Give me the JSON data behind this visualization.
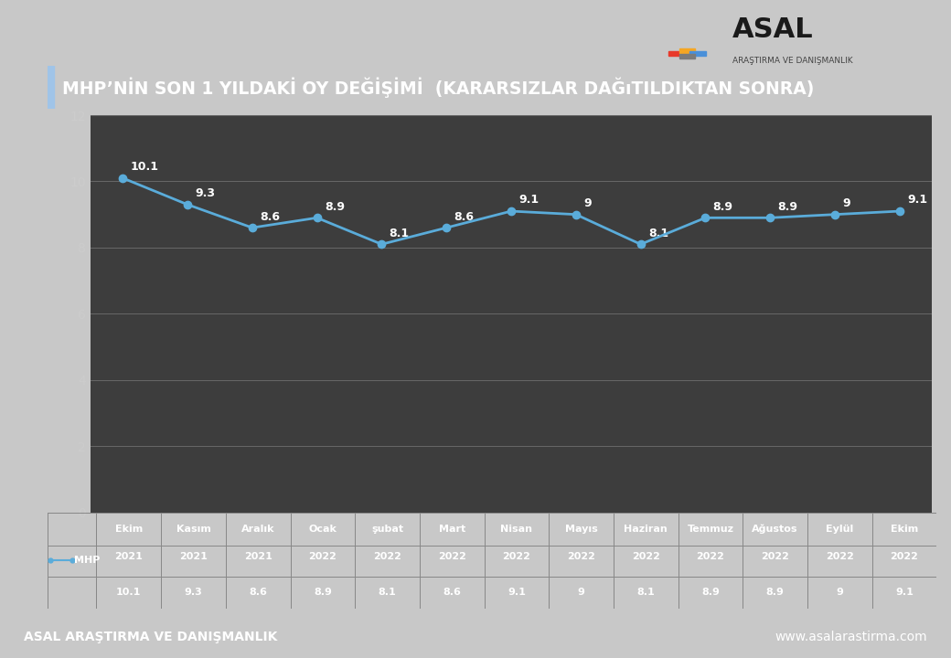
{
  "title": "MHP’NİN SON 1 YILDAKİ OY DEĞİŞİMİ  (KARARSIZLAR DAĞıTILDIKTAN SONRA)",
  "categories": [
    "Ekim\n2021",
    "Kasım\n2021",
    "Aralık\n2021",
    "Ocak\n2022",
    "şubat\n2022",
    "Mart\n2022",
    "Nisan\n2022",
    "Mayıs\n2022",
    "Haziran\n2022",
    "Temmuz\n2022",
    "Ağustos\n2022",
    "Eylül\n2022",
    "Ekim\n2022"
  ],
  "cat_row1": [
    "Ekim",
    "Kasım",
    "Aralık",
    "Ocak",
    "şubat",
    "Mart",
    "Nisan",
    "Mayıs",
    "Haziran",
    "Temmuz",
    "Ağustos",
    "Eylül",
    "Ekim"
  ],
  "cat_row2": [
    "2021",
    "2021",
    "2021",
    "2022",
    "2022",
    "2022",
    "2022",
    "2022",
    "2022",
    "2022",
    "2022",
    "2022",
    "2022"
  ],
  "values": [
    10.1,
    9.3,
    8.6,
    8.9,
    8.1,
    8.6,
    9.1,
    9.0,
    8.1,
    8.9,
    8.9,
    9.0,
    9.1
  ],
  "line_color": "#5aacda",
  "marker_color": "#5aacda",
  "chart_bg": "#3d3d3d",
  "outer_bg": "#c8c8c8",
  "title_bg": "#2b4d82",
  "title_color": "#ffffff",
  "footer_bg": "#2b4d82",
  "footer_left": "ASAL ARAŞTIRMA VE DANIŞMANLIK",
  "footer_right": "www.asalarastirma.com",
  "footer_color": "#ffffff",
  "legend_label": "MHP",
  "ylim": [
    0,
    12
  ],
  "yticks": [
    0,
    2,
    4,
    6,
    8,
    10,
    12
  ],
  "grid_color": "#686868",
  "tick_color": "#cccccc",
  "label_font_size": 8,
  "value_font_size": 9,
  "title_font_size": 13.5,
  "table_line_color": "#888888"
}
